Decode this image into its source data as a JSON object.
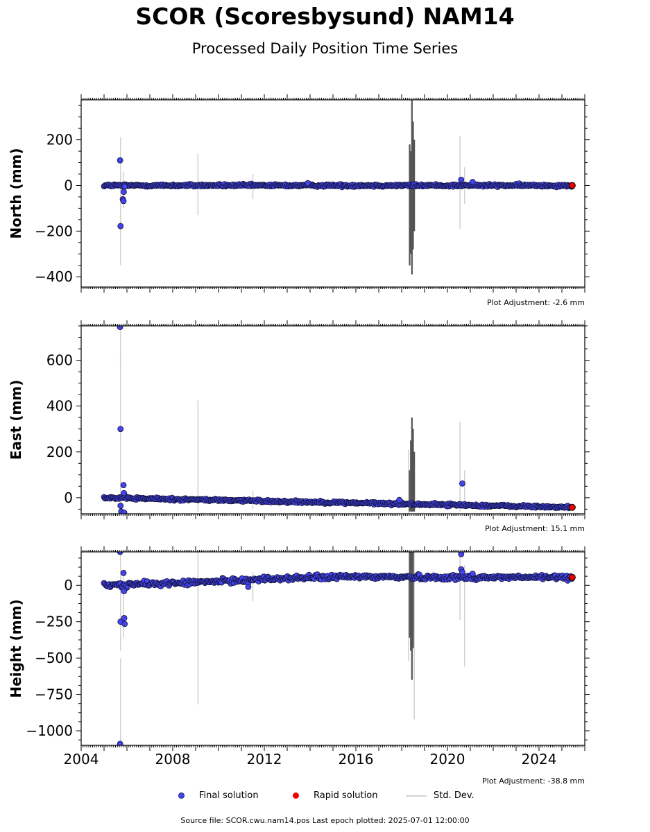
{
  "header": {
    "title": "SCOR (Scoresbysund) NAM14",
    "subtitle": "Processed Daily Position Time Series"
  },
  "legend": {
    "final": "Final solution",
    "rapid": "Rapid solution",
    "std": "Std. Dev."
  },
  "footer": {
    "source": "Source file: SCOR.cwu.nam14.pos  Last epoch plotted: 2025-07-01 12:00:00"
  },
  "colors": {
    "final": "#4444ee",
    "rapid": "#ee0000",
    "std": "#d3d3d3",
    "std_dark": "#555555"
  },
  "chart_data": [
    {
      "type": "scatter",
      "ylabel": "North (mm)",
      "adjustment": "Plot Adjustment: -2.6 mm",
      "xlim": [
        2004.0,
        2026.0
      ],
      "ylim": [
        -445,
        375
      ],
      "yticks": [
        -400,
        -200,
        0,
        200
      ],
      "xticks": [
        2004,
        2008,
        2012,
        2016,
        2020,
        2024
      ],
      "trend": [
        [
          2005.0,
          0
        ],
        [
          2025.5,
          0
        ]
      ],
      "noise": 4,
      "outliers": [
        [
          2005.7,
          110
        ],
        [
          2005.72,
          -178
        ],
        [
          2005.82,
          -60
        ],
        [
          2005.85,
          -68
        ],
        [
          2005.86,
          -28
        ],
        [
          2005.9,
          -5
        ],
        [
          2020.6,
          25
        ],
        [
          2021.1,
          15
        ],
        [
          2013.9,
          10
        ]
      ],
      "std_light": [
        [
          2005.72,
          -350,
          210
        ],
        [
          2005.85,
          -100,
          60
        ],
        [
          2009.1,
          -130,
          140
        ],
        [
          2011.5,
          -60,
          50
        ],
        [
          2020.55,
          -190,
          215
        ],
        [
          2020.75,
          -80,
          80
        ]
      ],
      "std_dark": [
        [
          2018.35,
          -350,
          180
        ],
        [
          2018.4,
          -300,
          150
        ],
        [
          2018.45,
          -390,
          375
        ],
        [
          2018.5,
          -280,
          280
        ],
        [
          2018.55,
          -200,
          200
        ]
      ],
      "rapid": [
        [
          2025.45,
          0
        ]
      ]
    },
    {
      "type": "scatter",
      "ylabel": "East (mm)",
      "adjustment": "Plot Adjustment: 15.1 mm",
      "xlim": [
        2004.0,
        2026.0
      ],
      "ylim": [
        -70,
        750
      ],
      "yticks": [
        0,
        200,
        400,
        600
      ],
      "xticks": [
        2004,
        2008,
        2012,
        2016,
        2020,
        2024
      ],
      "trend": [
        [
          2005.0,
          0
        ],
        [
          2025.5,
          -42
        ]
      ],
      "noise": 4,
      "outliers": [
        [
          2005.7,
          745
        ],
        [
          2005.72,
          300
        ],
        [
          2005.72,
          -35
        ],
        [
          2005.75,
          -60
        ],
        [
          2005.85,
          55
        ],
        [
          2005.87,
          20
        ],
        [
          2005.88,
          -65
        ],
        [
          2017.9,
          -10
        ],
        [
          2020.65,
          62
        ]
      ],
      "std_light": [
        [
          2005.72,
          580,
          745
        ],
        [
          2005.72,
          -60,
          620
        ],
        [
          2009.1,
          -60,
          425
        ],
        [
          2011.5,
          -50,
          30
        ],
        [
          2018.3,
          -70,
          210
        ],
        [
          2020.55,
          -60,
          330
        ],
        [
          2020.75,
          -40,
          120
        ]
      ],
      "std_dark": [
        [
          2018.35,
          -60,
          120
        ],
        [
          2018.4,
          -60,
          250
        ],
        [
          2018.45,
          -60,
          350
        ],
        [
          2018.5,
          -60,
          300
        ],
        [
          2018.55,
          -60,
          200
        ]
      ],
      "rapid": [
        [
          2025.45,
          -42
        ]
      ]
    },
    {
      "type": "scatter",
      "ylabel": "Height (mm)",
      "adjustment": "Plot Adjustment: -38.8 mm",
      "xlim": [
        2004.0,
        2026.0
      ],
      "ylim": [
        -1100,
        230
      ],
      "yticks": [
        -1000,
        -750,
        -500,
        -250,
        0
      ],
      "xticks": [
        2004,
        2008,
        2012,
        2016,
        2020,
        2024
      ],
      "trend": [
        [
          2005.0,
          0
        ],
        [
          2009.0,
          20
        ],
        [
          2013.0,
          50
        ],
        [
          2016.0,
          60
        ],
        [
          2020.0,
          55
        ],
        [
          2025.5,
          55
        ]
      ],
      "noise": 12,
      "outliers": [
        [
          2005.7,
          230
        ],
        [
          2005.72,
          -250
        ],
        [
          2005.85,
          85
        ],
        [
          2005.87,
          -40
        ],
        [
          2005.88,
          -225
        ],
        [
          2005.9,
          -265
        ],
        [
          2005.7,
          -1090
        ],
        [
          2011.3,
          -10
        ],
        [
          2020.6,
          215
        ],
        [
          2020.6,
          110
        ],
        [
          2020.65,
          90
        ],
        [
          2021.1,
          80
        ]
      ],
      "std_light": [
        [
          2005.72,
          -450,
          230
        ],
        [
          2005.72,
          -1080,
          -500
        ],
        [
          2005.85,
          -360,
          90
        ],
        [
          2009.1,
          -820,
          230
        ],
        [
          2011.5,
          -110,
          90
        ],
        [
          2018.3,
          -520,
          80
        ],
        [
          2018.55,
          -920,
          230
        ],
        [
          2020.55,
          -240,
          220
        ],
        [
          2020.75,
          -560,
          140
        ]
      ],
      "std_dark": [
        [
          2018.35,
          -360,
          230
        ],
        [
          2018.4,
          -450,
          230
        ],
        [
          2018.45,
          -650,
          230
        ],
        [
          2018.5,
          -430,
          230
        ]
      ],
      "rapid": [
        [
          2025.45,
          55
        ]
      ]
    }
  ]
}
